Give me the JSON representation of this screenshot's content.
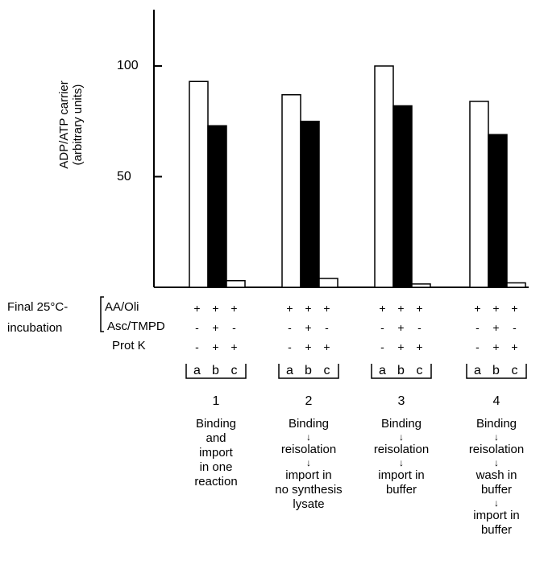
{
  "chart_data": {
    "type": "bar",
    "ylabel": "ADP/ATP carrier",
    "ylabel_unit": "(arbitrary units)",
    "yticks": [
      50,
      100
    ],
    "ylim": [
      0,
      125
    ],
    "series_letters": [
      "a",
      "b",
      "c"
    ],
    "series_colors": [
      "#ffffff",
      "#000000",
      "#ffffff"
    ],
    "groups": [
      {
        "label": "1",
        "values": [
          93,
          73,
          3
        ],
        "description": [
          "Binding",
          "and",
          "import",
          "in one",
          "reaction"
        ]
      },
      {
        "label": "2",
        "values": [
          87,
          75,
          4
        ],
        "description": [
          "Binding",
          "↓",
          "reisolation",
          "↓",
          "import in",
          "no synthesis",
          "lysate"
        ]
      },
      {
        "label": "3",
        "values": [
          100,
          82,
          1.5
        ],
        "description": [
          "Binding",
          "↓",
          "reisolation",
          "↓",
          "import in",
          "buffer"
        ]
      },
      {
        "label": "4",
        "values": [
          84,
          69,
          2
        ],
        "description": [
          "Binding",
          "↓",
          "reisolation",
          "↓",
          "wash in",
          "buffer",
          "↓",
          "import in",
          "buffer"
        ]
      }
    ],
    "conditions": {
      "title": [
        "Final 25°C-",
        "incubation"
      ],
      "rows": [
        {
          "name": "AA/Oli",
          "signs": [
            "+",
            "+",
            "+"
          ]
        },
        {
          "name": "Asc/TMPD",
          "signs": [
            "-",
            "+",
            "-"
          ]
        },
        {
          "name": "Prot K",
          "signs": [
            "-",
            "+",
            "+"
          ]
        }
      ]
    }
  }
}
